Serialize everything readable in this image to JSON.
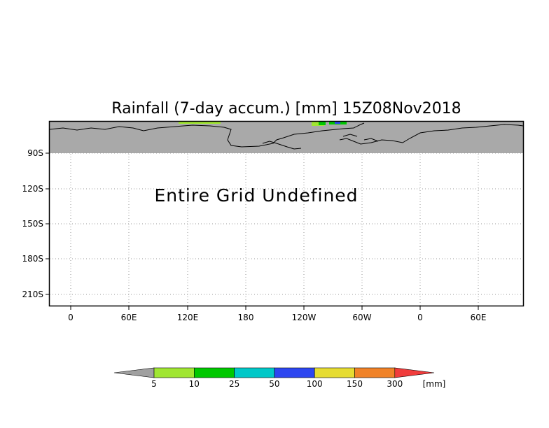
{
  "title": "Rainfall (7-day accum.) [mm] 15Z08Nov2018",
  "message": "Entire Grid Undefined",
  "y_ticks": [
    "90S",
    "120S",
    "150S",
    "180S",
    "210S"
  ],
  "x_ticks": [
    "0",
    "60E",
    "120E",
    "180",
    "120W",
    "60W",
    "0",
    "60E"
  ],
  "colorbar": {
    "labels": [
      "5",
      "10",
      "25",
      "50",
      "100",
      "150",
      "300"
    ],
    "unit": "[mm]",
    "colors": [
      "#a0a0a0",
      "#a0e632",
      "#00c800",
      "#00c8c8",
      "#2d46f0",
      "#e6dc32",
      "#f08228",
      "#f03c3c"
    ]
  },
  "colors": {
    "undefined_band": "#a9a9a9",
    "grid": "#9a9a9a",
    "coast": "#000000"
  }
}
